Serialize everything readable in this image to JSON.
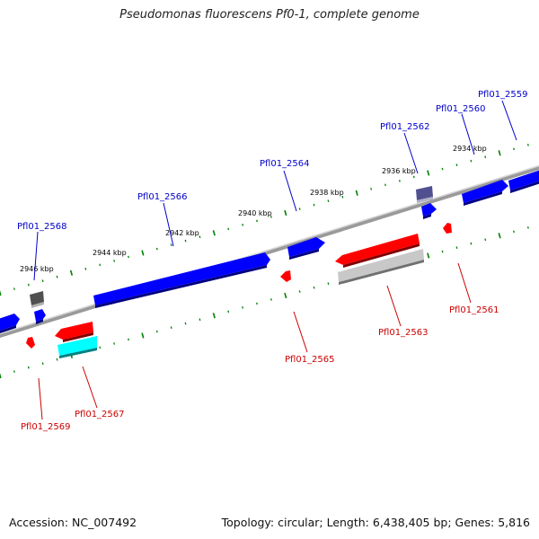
{
  "title": "Pseudomonas fluorescens Pf0-1, complete genome",
  "footer": {
    "accession": "Accession: NC_007492",
    "stats": "Topology: circular; Length: 6,438,405 bp; Genes: 5,816"
  },
  "colors": {
    "forward_gene": "#0000ff",
    "reverse_gene": "#ff0000",
    "forward_label": "#0000cc",
    "reverse_label": "#cc0000",
    "backbone": "#808080",
    "tick": "#008000",
    "rna_cyan": "#00ffff",
    "pseudo_gray": "#c0c0c0",
    "pseudo_dark": "#505050",
    "pseudo_purple": "#505090"
  },
  "scale_labels": [
    "2946 kbp",
    "2944 kbp",
    "2942 kbp",
    "2940 kbp",
    "2938 kbp",
    "2936 kbp",
    "2934 kbp"
  ],
  "gene_labels": {
    "forward": [
      "Pfl01_2568",
      "Pfl01_2566",
      "Pfl01_2564",
      "Pfl01_2562",
      "Pfl01_2560",
      "Pfl01_2559"
    ],
    "reverse": [
      "Pfl01_2569",
      "Pfl01_2567",
      "Pfl01_2565",
      "Pfl01_2563",
      "Pfl01_2561"
    ]
  }
}
